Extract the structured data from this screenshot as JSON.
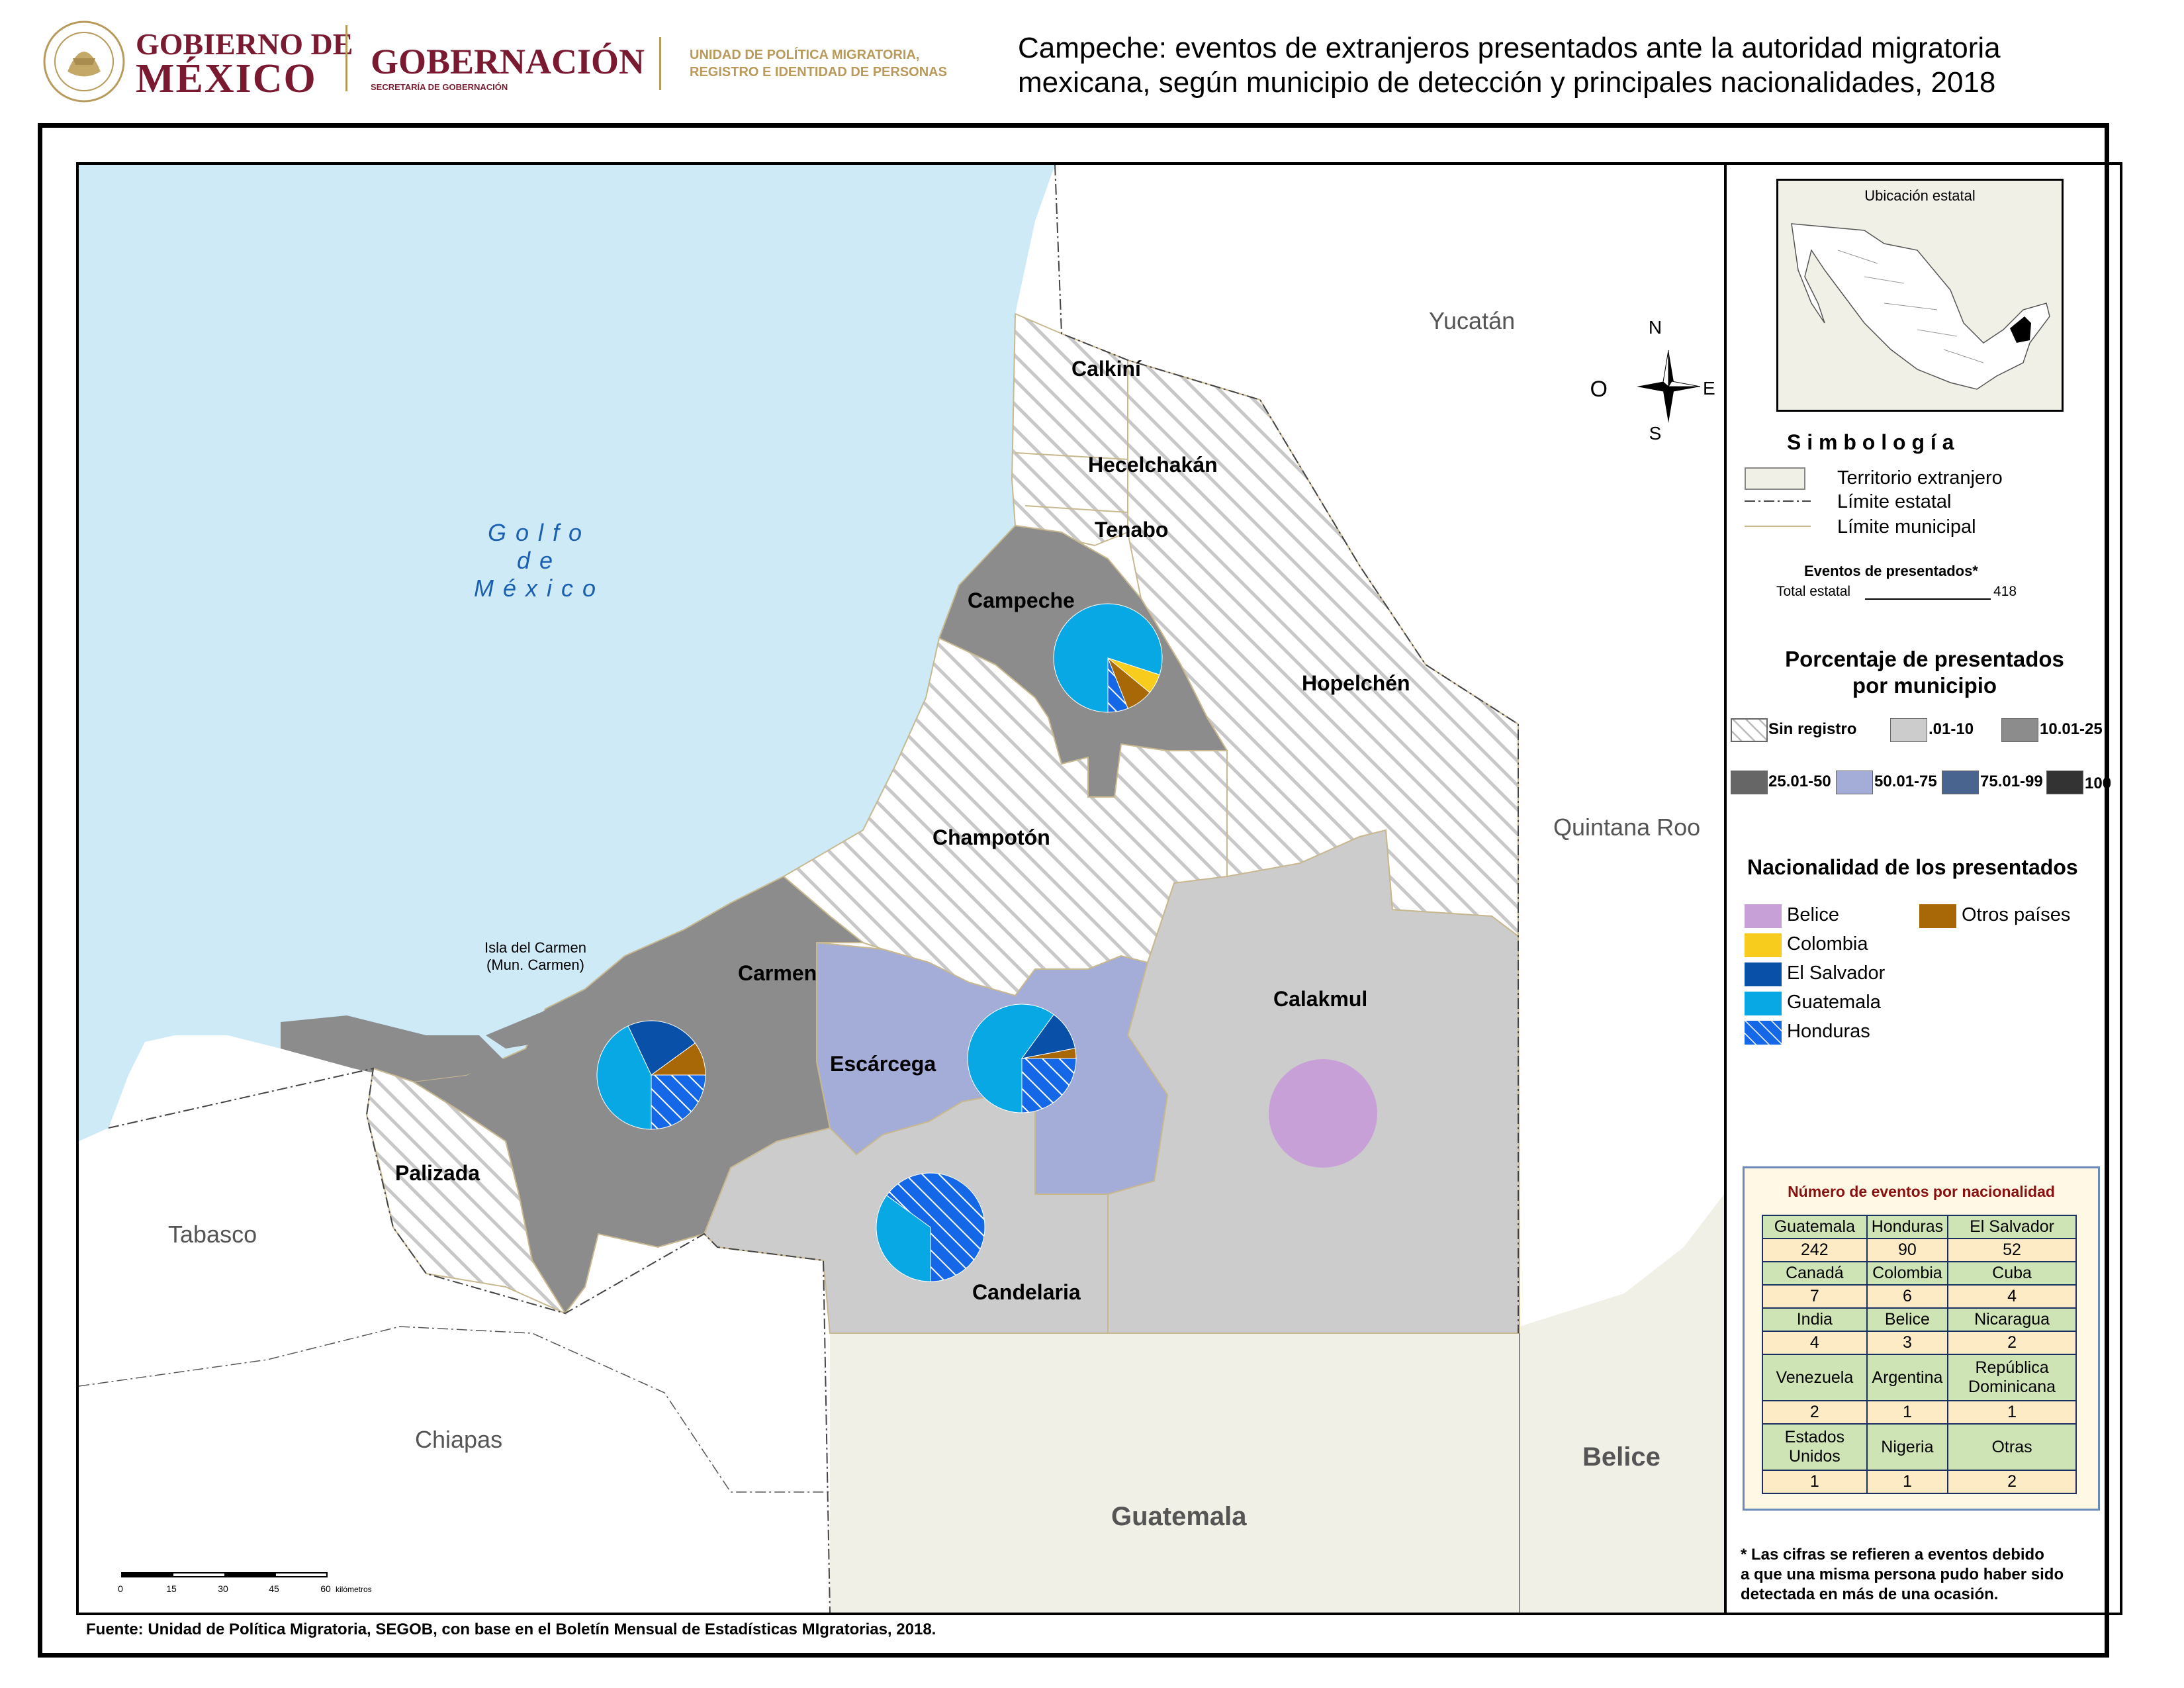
{
  "header": {
    "gob_line1": "GOBIERNO DE",
    "gob_line2": "MÉXICO",
    "gobernacion": "GOBERNACIÓN",
    "secretaria": "SECRETARÍA DE GOBERNACIÓN",
    "unidad_line1": "UNIDAD DE POLÍTICA MIGRATORIA,",
    "unidad_line2": "REGISTRO E IDENTIDAD DE PERSONAS",
    "seal_text": "ESTADOS UNIDOS MEXICANOS",
    "title_line1": "Campeche: eventos de extranjeros presentados ante la autoridad migratoria",
    "title_line2": "mexicana, según municipio de detección y principales nacionalidades, 2018"
  },
  "map": {
    "compass": {
      "n": "N",
      "s": "S",
      "e": "E",
      "o": "O"
    },
    "gulf": {
      "line1": "G o l f o",
      "line2": "d e",
      "line3": "M é x i c o"
    },
    "states": {
      "yucatan": "Yucatán",
      "quintana_roo": "Quintana Roo",
      "tabasco": "Tabasco",
      "chiapas": "Chiapas",
      "belice": "Belice",
      "guatemala": "Guatemala"
    },
    "municipios": {
      "calkini": "Calkiní",
      "hecelchakan": "Hecelchakán",
      "tenabo": "Tenabo",
      "campeche": "Campeche",
      "hopelchen": "Hopelchén",
      "champoton": "Champotón",
      "carmen": "Carmen",
      "escarcega": "Escárcega",
      "calakmul": "Calakmul",
      "palizada": "Palizada",
      "candelaria": "Candelaria"
    },
    "isla_line1": "Isla del Carmen",
    "isla_line2": "(Mun. Carmen)",
    "scale": {
      "ticks": [
        "0",
        "15",
        "30",
        "45",
        "60"
      ],
      "unit": "kilómetros"
    },
    "colors": {
      "sea": "#cdeaf6",
      "foreign": "#f0f0e6",
      "sin_registro": "#ffffff",
      "r01_10": "#cccccc",
      "r10_25": "#8c8c8c",
      "r50_75": "#a4acd8"
    }
  },
  "chart_data": {
    "type": "pie",
    "series_colors": {
      "Belice": "#c8a0d8",
      "Colombia": "#f8cc1c",
      "El Salvador": "#0850a8",
      "Guatemala": "#08a8e4",
      "Honduras": "#1468e8",
      "Otros países": "#a86808"
    },
    "pies": [
      {
        "municipio": "Campeche",
        "slices": [
          {
            "name": "Guatemala",
            "value": 80
          },
          {
            "name": "Colombia",
            "value": 6
          },
          {
            "name": "Otros países",
            "value": 8
          },
          {
            "name": "Honduras",
            "value": 6
          }
        ]
      },
      {
        "municipio": "Carmen",
        "slices": [
          {
            "name": "Guatemala",
            "value": 43
          },
          {
            "name": "El Salvador",
            "value": 22
          },
          {
            "name": "Otros países",
            "value": 10
          },
          {
            "name": "Honduras",
            "value": 25
          }
        ]
      },
      {
        "municipio": "Escárcega",
        "slices": [
          {
            "name": "Guatemala",
            "value": 60
          },
          {
            "name": "El Salvador",
            "value": 12
          },
          {
            "name": "Otros países",
            "value": 3
          },
          {
            "name": "Honduras",
            "value": 25
          }
        ]
      },
      {
        "municipio": "Candelaria",
        "slices": [
          {
            "name": "Guatemala",
            "value": 35
          },
          {
            "name": "Honduras",
            "value": 65
          }
        ]
      },
      {
        "municipio": "Calakmul",
        "slices": [
          {
            "name": "Belice",
            "value": 100
          }
        ]
      }
    ]
  },
  "legend": {
    "ubicacion": "Ubicación estatal",
    "simbologia": "S i m b o l o g í a",
    "territorio": "Territorio extranjero",
    "limite_estatal": "Límite estatal",
    "limite_municipal": "Límite municipal",
    "eventos_title": "Eventos de presentados*",
    "total_label": "Total estatal",
    "total_value": "418",
    "porc_line1": "Porcentaje de presentados",
    "porc_line2": "por municipio",
    "classes": [
      {
        "label": "Sin registro",
        "color": "#ffffff"
      },
      {
        "label": ".01-10",
        "color": "#cccccc"
      },
      {
        "label": "10.01-25",
        "color": "#8c8c8c"
      },
      {
        "label": "25.01-50",
        "color": "#666666"
      },
      {
        "label": "50.01-75",
        "color": "#a4acd8"
      },
      {
        "label": "75.01-99",
        "color": "#4a6490"
      },
      {
        "label": "100",
        "color": "#333333"
      }
    ],
    "nac_title": "Nacionalidad de los presentados",
    "nacionalidades": [
      "Belice",
      "Colombia",
      "El Salvador",
      "Guatemala",
      "Honduras",
      "Otros países"
    ],
    "table_title": "Número de eventos por nacionalidad",
    "table_rows": [
      [
        [
          "Guatemala",
          "242"
        ],
        [
          "Honduras",
          "90"
        ],
        [
          "El Salvador",
          "52"
        ]
      ],
      [
        [
          "Canadá",
          "7"
        ],
        [
          "Colombia",
          "6"
        ],
        [
          "Cuba",
          "4"
        ]
      ],
      [
        [
          "India",
          "4"
        ],
        [
          "Belice",
          "3"
        ],
        [
          "Nicaragua",
          "2"
        ]
      ],
      [
        [
          "Venezuela",
          "2"
        ],
        [
          "Argentina",
          "1"
        ],
        [
          "República Dominicana",
          "1"
        ]
      ],
      [
        [
          "Estados Unidos",
          "1"
        ],
        [
          "Nigeria",
          "1"
        ],
        [
          "Otras",
          "2"
        ]
      ]
    ],
    "note_line1": "* Las cifras se refieren a eventos debido",
    "note_line2": "a que una misma persona pudo haber sido",
    "note_line3": "detectada en más de una ocasión."
  },
  "footer": {
    "fuente": "Fuente: Unidad de Política Migratoria, SEGOB, con base en el Boletín Mensual de Estadísticas MIgratorias, 2018."
  }
}
